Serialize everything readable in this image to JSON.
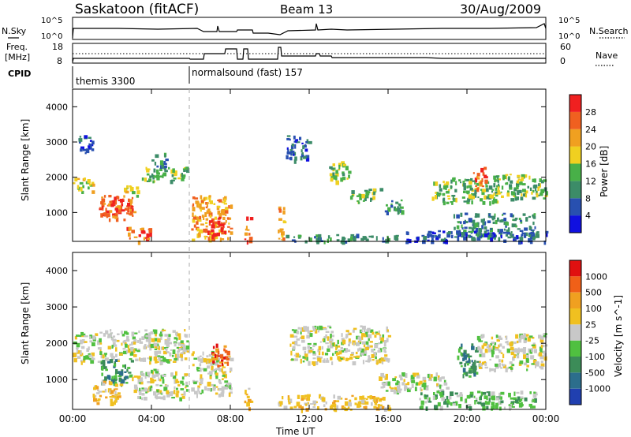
{
  "header": {
    "station": "Saskatoon (fitACF)",
    "beam": "Beam 13",
    "date": "30/Aug/2009"
  },
  "top_panels": {
    "nsky_label": "N.Sky",
    "nsky_ticks": [
      "10^5",
      "10^0"
    ],
    "nsearch_label": "N.Search",
    "nsearch_ticks": [
      "10^5",
      "10^0"
    ],
    "freq_label_1": "Freq.",
    "freq_label_2": "[MHz]",
    "freq_ticks": [
      "18",
      "8"
    ],
    "nave_label": "Nave",
    "nave_ticks": [
      "60",
      "0"
    ],
    "cpid_label": "CPID",
    "cpid_segments": [
      {
        "name": "themis 3300",
        "start_hr": 0
      },
      {
        "name": "normalsound (fast) 157",
        "start_hr": 6.0
      }
    ]
  },
  "chart_data": [
    {
      "type": "heatmap",
      "title": "",
      "ylabel": "Slant Range [km]",
      "xlabel": "",
      "y_ticks": [
        "1000",
        "2000",
        "3000",
        "4000"
      ],
      "ylim": [
        180,
        4500
      ],
      "xlim_hr": [
        0,
        24
      ],
      "colorbar_label": "Power [dB]",
      "colorbar_ticks": [
        "4",
        "8",
        "12",
        "16",
        "20",
        "24",
        "28"
      ],
      "colorbar_colors": [
        "#1010e0",
        "#2850b0",
        "#3c8c68",
        "#48b048",
        "#f0d020",
        "#f0a020",
        "#f06020",
        "#f02020"
      ],
      "patches": [
        {
          "t": 0.0,
          "t2": 1.0,
          "r": 1600,
          "r2": 2000,
          "c": 4
        },
        {
          "t": 1.3,
          "t2": 3.1,
          "r": 800,
          "r2": 1500,
          "c": 6
        },
        {
          "t": 2.0,
          "t2": 2.8,
          "r": 1000,
          "r2": 1400,
          "c": 7
        },
        {
          "t": 2.6,
          "t2": 3.4,
          "r": 1500,
          "r2": 1800,
          "c": 4
        },
        {
          "t": 3.4,
          "t2": 5.8,
          "r": 1900,
          "r2": 2300,
          "c": 3
        },
        {
          "t": 2.7,
          "t2": 3.9,
          "r": 200,
          "r2": 600,
          "c": 6
        },
        {
          "t": 0.2,
          "t2": 1.0,
          "r": 2700,
          "r2": 3200,
          "c": 1
        },
        {
          "t": 4.0,
          "t2": 4.8,
          "r": 2300,
          "r2": 2700,
          "c": 2
        },
        {
          "t": 6.0,
          "t2": 8.0,
          "r": 250,
          "r2": 1500,
          "c": 5
        },
        {
          "t": 6.8,
          "t2": 7.7,
          "r": 300,
          "r2": 900,
          "c": 7
        },
        {
          "t": 8.7,
          "t2": 9.0,
          "r": 200,
          "r2": 900,
          "c": 6
        },
        {
          "t": 10.4,
          "t2": 10.7,
          "r": 250,
          "r2": 1300,
          "c": 5
        },
        {
          "t": 10.7,
          "t2": 16.5,
          "r": 200,
          "r2": 400,
          "c": 2
        },
        {
          "t": 10.8,
          "t2": 12.0,
          "r": 2500,
          "r2": 3200,
          "c": 1
        },
        {
          "t": 13.0,
          "t2": 14.0,
          "r": 1900,
          "r2": 2500,
          "c": 3
        },
        {
          "t": 14.0,
          "t2": 15.6,
          "r": 1300,
          "r2": 1700,
          "c": 3
        },
        {
          "t": 15.8,
          "t2": 16.8,
          "r": 1000,
          "r2": 1400,
          "c": 2
        },
        {
          "t": 18.2,
          "t2": 21.5,
          "r": 1300,
          "r2": 2000,
          "c": 3
        },
        {
          "t": 20.3,
          "t2": 20.9,
          "r": 1700,
          "r2": 2300,
          "c": 6
        },
        {
          "t": 21.3,
          "t2": 24.0,
          "r": 1400,
          "r2": 2100,
          "c": 3
        },
        {
          "t": 19.3,
          "t2": 23.5,
          "r": 300,
          "r2": 1000,
          "c": 2
        },
        {
          "t": 16.7,
          "t2": 24.0,
          "r": 200,
          "r2": 500,
          "c": 1
        }
      ]
    },
    {
      "type": "heatmap",
      "title": "",
      "ylabel": "Slant Range [km]",
      "xlabel": "Time UT",
      "x_ticks": [
        "00:00",
        "04:00",
        "08:00",
        "12:00",
        "16:00",
        "20:00",
        "00:00"
      ],
      "y_ticks": [
        "1000",
        "2000",
        "3000",
        "4000"
      ],
      "ylim": [
        180,
        4500
      ],
      "xlim_hr": [
        0,
        24
      ],
      "colorbar_label": "Velocity [m s^-1]",
      "colorbar_ticks": [
        "1000",
        "500",
        "100",
        "25",
        "-25",
        "-100",
        "-500",
        "-1000"
      ],
      "colorbar_colors": [
        "#2040b0",
        "#2c6e8c",
        "#3c8c58",
        "#50c040",
        "#c8c8c8",
        "#f0c020",
        "#f0a020",
        "#f06018",
        "#e01010"
      ],
      "patches": [
        {
          "t": 0.0,
          "t2": 5.8,
          "r": 1500,
          "r2": 2400,
          "c": 4
        },
        {
          "t": 1.4,
          "t2": 3.0,
          "r": 900,
          "r2": 1600,
          "c": 2
        },
        {
          "t": 1.0,
          "t2": 2.4,
          "r": 350,
          "r2": 1000,
          "c": 5
        },
        {
          "t": 3.0,
          "t2": 5.8,
          "r": 500,
          "r2": 1300,
          "c": 4
        },
        {
          "t": 6.0,
          "t2": 8.0,
          "r": 600,
          "r2": 1800,
          "c": 4
        },
        {
          "t": 7.0,
          "t2": 8.0,
          "r": 1400,
          "r2": 2000,
          "c": 7
        },
        {
          "t": 8.7,
          "t2": 9.0,
          "r": 200,
          "r2": 900,
          "c": 5
        },
        {
          "t": 10.4,
          "t2": 16.0,
          "r": 200,
          "r2": 600,
          "c": 5
        },
        {
          "t": 11.0,
          "t2": 16.0,
          "r": 1500,
          "r2": 2500,
          "c": 4
        },
        {
          "t": 15.5,
          "t2": 19.0,
          "r": 700,
          "r2": 1200,
          "c": 4
        },
        {
          "t": 19.5,
          "t2": 20.5,
          "r": 1100,
          "r2": 2000,
          "c": 2
        },
        {
          "t": 20.5,
          "t2": 24.0,
          "r": 1300,
          "r2": 2300,
          "c": 4
        },
        {
          "t": 17.5,
          "t2": 23.5,
          "r": 250,
          "r2": 700,
          "c": 3
        }
      ]
    }
  ]
}
